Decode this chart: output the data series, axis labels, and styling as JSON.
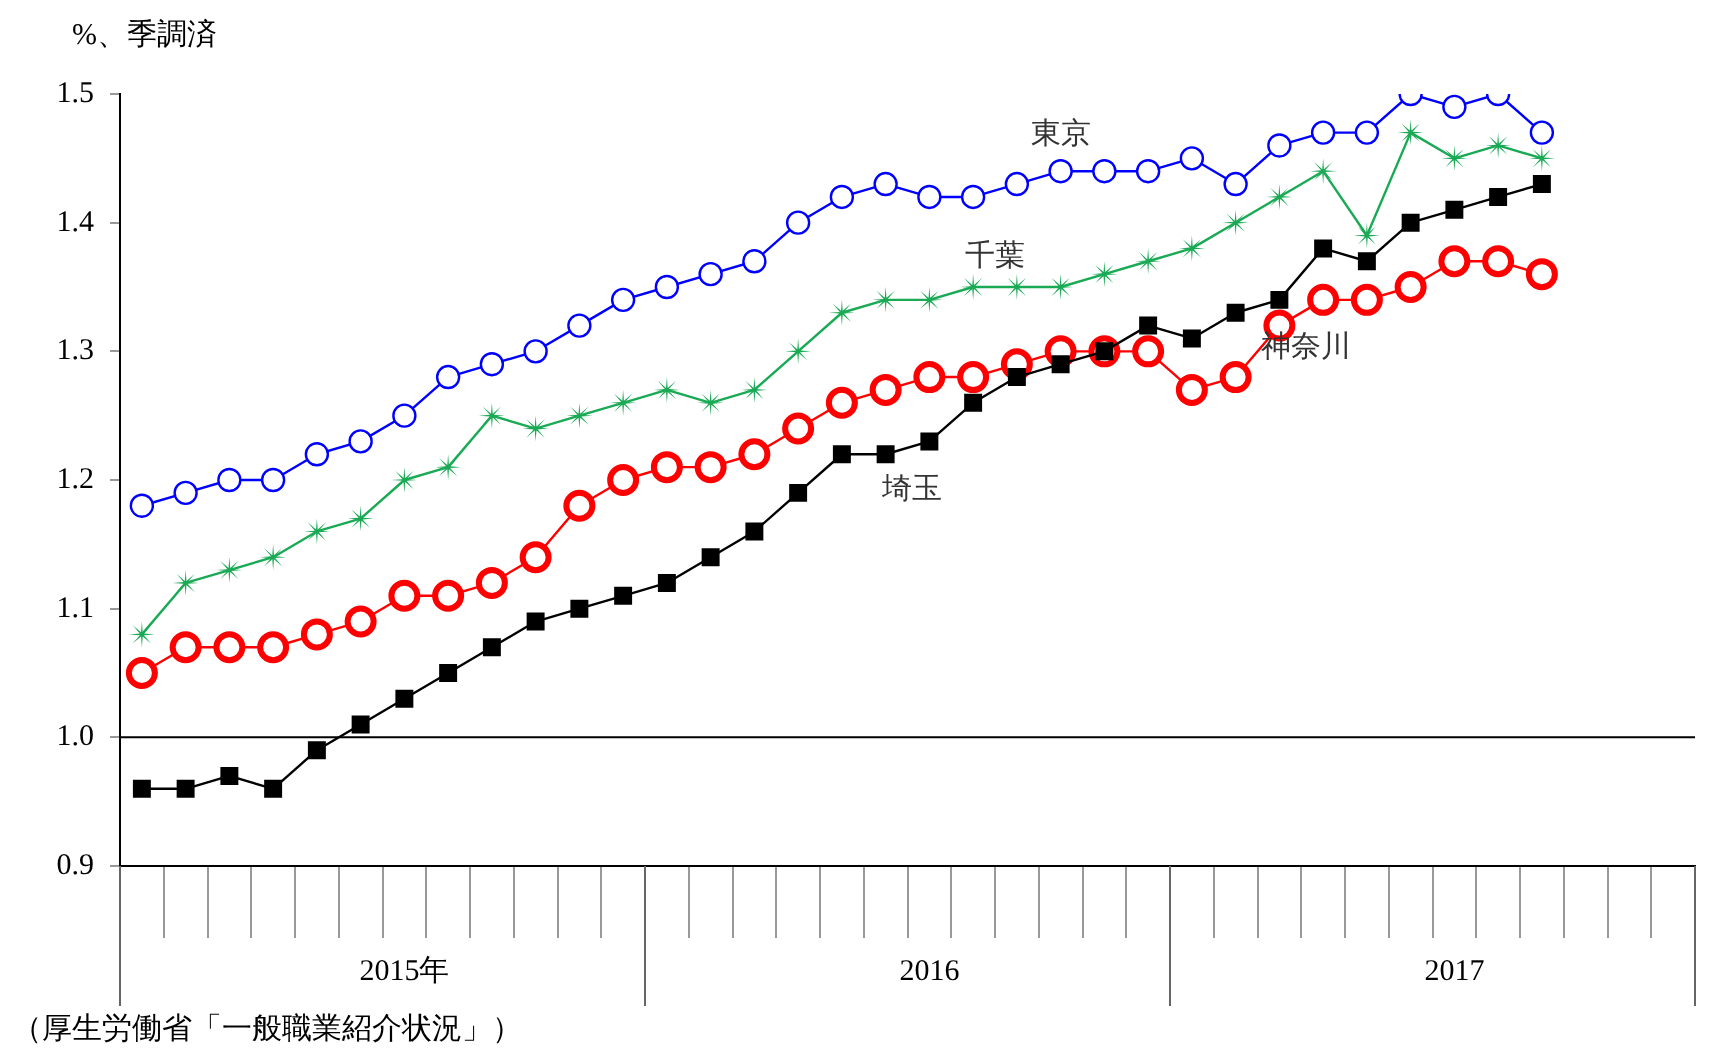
{
  "chart_data": {
    "type": "line",
    "ylabel": "%、季調済",
    "categories": [
      null,
      null,
      null,
      null,
      null,
      null,
      "2015年",
      null,
      null,
      null,
      null,
      null,
      null,
      null,
      null,
      null,
      null,
      null,
      "2016",
      null,
      null,
      null,
      null,
      null,
      null,
      null,
      null,
      null,
      null,
      null,
      "2017",
      null,
      null,
      null,
      null,
      null
    ],
    "series": [
      {
        "name": "東京",
        "color": "#0000ff",
        "marker": "circle",
        "values": [
          1.18,
          1.19,
          1.2,
          1.2,
          1.22,
          1.23,
          1.25,
          1.28,
          1.29,
          1.3,
          1.32,
          1.34,
          1.35,
          1.36,
          1.37,
          1.4,
          1.42,
          1.43,
          1.42,
          1.42,
          1.43,
          1.44,
          1.44,
          1.44,
          1.45,
          1.43,
          1.46,
          1.47,
          1.47,
          1.5,
          1.49,
          1.5,
          1.47,
          null,
          null,
          null
        ]
      },
      {
        "name": "千葉",
        "color": "#1aaa55",
        "marker": "star",
        "values": [
          1.08,
          1.12,
          1.13,
          1.14,
          1.16,
          1.17,
          1.2,
          1.21,
          1.25,
          1.24,
          1.25,
          1.26,
          1.27,
          1.26,
          1.27,
          1.3,
          1.33,
          1.34,
          1.34,
          1.35,
          1.35,
          1.35,
          1.36,
          1.37,
          1.38,
          1.4,
          1.42,
          1.44,
          1.39,
          1.47,
          1.45,
          1.46,
          1.45,
          null,
          null,
          null
        ]
      },
      {
        "name": "埼玉",
        "color": "#000000",
        "marker": "square",
        "values": [
          0.96,
          0.96,
          0.97,
          0.96,
          0.99,
          1.01,
          1.03,
          1.05,
          1.07,
          1.09,
          1.1,
          1.11,
          1.12,
          1.14,
          1.16,
          1.19,
          1.22,
          1.22,
          1.23,
          1.26,
          1.28,
          1.29,
          1.3,
          1.32,
          1.31,
          1.33,
          1.34,
          1.38,
          1.37,
          1.4,
          1.41,
          1.42,
          1.43,
          null,
          null,
          null
        ]
      },
      {
        "name": "神奈川",
        "color": "#ff0000",
        "marker": "circle",
        "values": [
          1.05,
          1.07,
          1.07,
          1.07,
          1.08,
          1.09,
          1.11,
          1.11,
          1.12,
          1.14,
          1.18,
          1.2,
          1.21,
          1.21,
          1.22,
          1.24,
          1.26,
          1.27,
          1.28,
          1.28,
          1.29,
          1.3,
          1.3,
          1.3,
          1.27,
          1.28,
          1.32,
          1.34,
          1.34,
          1.35,
          1.37,
          1.37,
          1.36,
          null,
          null,
          null
        ]
      }
    ],
    "ylim": [
      0.9,
      1.5
    ],
    "yticks": [
      {
        "value": 0.9,
        "label": "0.9"
      },
      {
        "value": 1.0,
        "label": "1.0"
      },
      {
        "value": 1.1,
        "label": "1.1"
      },
      {
        "value": 1.2,
        "label": "1.2"
      },
      {
        "value": 1.3,
        "label": "1.3"
      },
      {
        "value": 1.4,
        "label": "1.4"
      },
      {
        "value": 1.5,
        "label": "1.5"
      }
    ],
    "ref_lines": [
      {
        "axis": "y",
        "value": 1.0,
        "color": "#000000"
      }
    ],
    "annotations": [
      "（厚生労働省「一般職業紹介状況」）"
    ],
    "grid": false,
    "legend": false,
    "line_style": "solid"
  }
}
